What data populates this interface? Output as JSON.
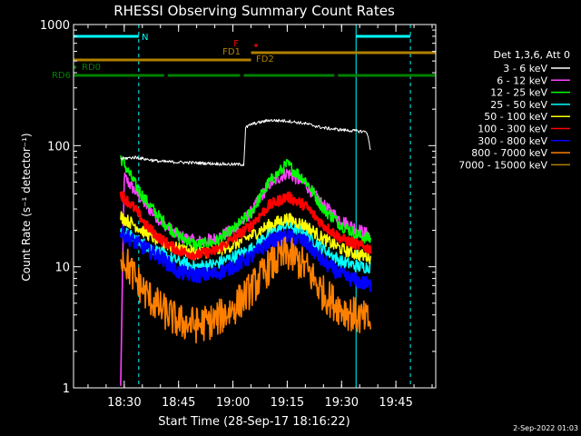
{
  "chart_data": {
    "type": "line",
    "title": "RHESSI Observing Summary Count Rates",
    "xlabel": "Start Time (28-Sep-17 18:16:22)",
    "ylabel": "Count Rate (s⁻¹ detector⁻¹)",
    "yscale": "log",
    "ylim": [
      1,
      1000
    ],
    "xlim": [
      "18:16",
      "19:56"
    ],
    "x_ticks": [
      "18:30",
      "18:45",
      "19:00",
      "19:15",
      "19:30",
      "19:45"
    ],
    "y_ticks": [
      "1",
      "10",
      "100",
      "1000"
    ],
    "legend_header": "Det 1,3,6, Att 0",
    "legend_position": "right",
    "grid": false,
    "series": [
      {
        "name": "3 - 6 keV",
        "color": "#ffffff",
        "x": [
          "18:29",
          "18:33",
          "18:40",
          "18:50",
          "19:00",
          "19:03",
          "19:03.5",
          "19:05",
          "19:10",
          "19:15",
          "19:20",
          "19:25",
          "19:30",
          "19:37",
          "19:38"
        ],
        "values": [
          78,
          80,
          74,
          72,
          70,
          70,
          140,
          150,
          162,
          160,
          152,
          140,
          135,
          130,
          92
        ]
      },
      {
        "name": "6 - 12 keV",
        "color": "#ff40ff",
        "x": [
          "18:29",
          "18:30",
          "18:33",
          "18:36",
          "18:40",
          "18:45",
          "18:50",
          "18:55",
          "19:00",
          "19:05",
          "19:10",
          "19:15",
          "19:20",
          "19:25",
          "19:30",
          "19:35",
          "19:38"
        ],
        "values": [
          1,
          55,
          42,
          32,
          24,
          18,
          16,
          17,
          20,
          28,
          48,
          60,
          48,
          32,
          24,
          20,
          18
        ]
      },
      {
        "name": "12 - 25 keV",
        "color": "#00ff00",
        "x": [
          "18:29",
          "18:33",
          "18:36",
          "18:40",
          "18:45",
          "18:50",
          "18:55",
          "19:00",
          "19:05",
          "19:10",
          "19:15",
          "19:20",
          "19:25",
          "19:30",
          "19:35",
          "19:38"
        ],
        "values": [
          80,
          48,
          35,
          25,
          18,
          15,
          16,
          20,
          28,
          50,
          70,
          52,
          30,
          22,
          18,
          17
        ]
      },
      {
        "name": "25 - 50 keV",
        "color": "#00ffff",
        "x": [
          "18:29",
          "18:33",
          "18:36",
          "18:40",
          "18:45",
          "18:50",
          "18:55",
          "19:00",
          "19:05",
          "19:10",
          "19:15",
          "19:20",
          "19:25",
          "19:30",
          "19:35",
          "19:38"
        ],
        "values": [
          20,
          17,
          15,
          13,
          11,
          10,
          10.5,
          12,
          14,
          19,
          22,
          19,
          14,
          11,
          10,
          10
        ]
      },
      {
        "name": "50 - 100 keV",
        "color": "#ffff00",
        "x": [
          "18:29",
          "18:33",
          "18:36",
          "18:40",
          "18:45",
          "18:50",
          "18:55",
          "19:00",
          "19:05",
          "19:10",
          "19:15",
          "19:20",
          "19:25",
          "19:30",
          "19:35",
          "19:38"
        ],
        "values": [
          26,
          22,
          19,
          16,
          14,
          13,
          13.5,
          15,
          18,
          22,
          25,
          22,
          17,
          14,
          12.5,
          12
        ]
      },
      {
        "name": "100 - 300 keV",
        "color": "#ff0000",
        "x": [
          "18:29",
          "18:33",
          "18:36",
          "18:40",
          "18:45",
          "18:50",
          "18:55",
          "19:00",
          "19:05",
          "19:10",
          "19:15",
          "19:20",
          "19:25",
          "19:30",
          "19:35",
          "19:38"
        ],
        "values": [
          40,
          30,
          22,
          17,
          13.5,
          12.5,
          13.5,
          17,
          22,
          32,
          38,
          32,
          22,
          17,
          15,
          14
        ]
      },
      {
        "name": "300 - 800 keV",
        "color": "#0000ff",
        "x": [
          "18:29",
          "18:33",
          "18:36",
          "18:40",
          "18:45",
          "18:50",
          "18:55",
          "19:00",
          "19:05",
          "19:10",
          "19:15",
          "19:20",
          "19:25",
          "19:30",
          "19:35",
          "19:38"
        ],
        "values": [
          19,
          16,
          14,
          12,
          9,
          8.5,
          8.7,
          10,
          12,
          16,
          18,
          16,
          11,
          8.5,
          7.5,
          7
        ]
      },
      {
        "name": "800 - 7000 keV",
        "color": "#ff8000",
        "x": [
          "18:29",
          "18:33",
          "18:36",
          "18:40",
          "18:45",
          "18:50",
          "18:55",
          "19:00",
          "19:05",
          "19:10",
          "19:15",
          "19:20",
          "19:25",
          "19:30",
          "19:35",
          "19:38"
        ],
        "values": [
          13,
          8,
          6,
          4.5,
          3.5,
          3.3,
          3.6,
          4.5,
          6.5,
          10,
          13,
          10,
          6,
          4.5,
          3.8,
          3.5
        ]
      },
      {
        "name": "7000 - 15000 keV",
        "color": "#b08000",
        "x": [],
        "values": []
      }
    ],
    "annotations": {
      "flags": [
        {
          "label": "N",
          "color": "#00ffff",
          "segments": [
            [
              "18:16",
              "18:34"
            ],
            [
              "19:34",
              "19:49"
            ]
          ]
        },
        {
          "label": "F",
          "color": "#ff0000",
          "segments": [
            [
              "19:06",
              "19:06.5"
            ]
          ]
        },
        {
          "label": "FD1",
          "color": "#b08000",
          "segments": [
            [
              "18:16",
              "19:05"
            ]
          ]
        },
        {
          "label": "FD2",
          "color": "#b08000",
          "segments": [
            [
              "19:05",
              "19:56"
            ]
          ]
        },
        {
          "label": "RD0",
          "color": "#008000",
          "segments": [
            [
              "18:16",
              "18:16.5"
            ]
          ]
        },
        {
          "label": "RD6",
          "color": "#008000",
          "segments": [
            [
              "18:16",
              "18:41"
            ],
            [
              "18:42",
              "19:02"
            ],
            [
              "19:03",
              "19:28"
            ],
            [
              "19:29",
              "19:56"
            ]
          ]
        }
      ],
      "vertical_lines": [
        {
          "x": "18:16",
          "color": "#00ffff",
          "style": "solid"
        },
        {
          "x": "18:34",
          "color": "#00ffff",
          "style": "dashed"
        },
        {
          "x": "19:34",
          "color": "#00ffff",
          "style": "solid"
        },
        {
          "x": "19:49",
          "color": "#00ffff",
          "style": "dashed"
        }
      ]
    },
    "footer_date": "2-Sep-2022 01:03"
  }
}
